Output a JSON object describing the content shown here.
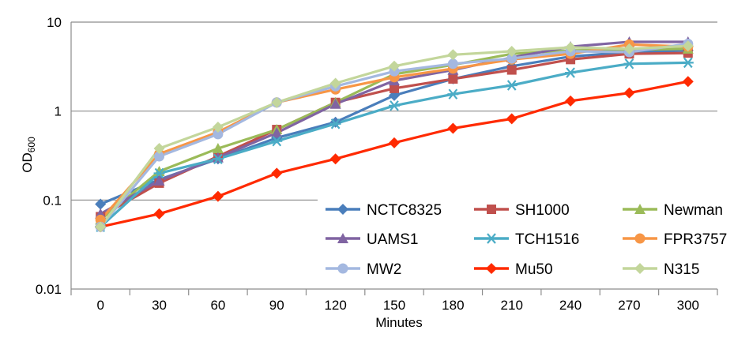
{
  "chart_data": {
    "type": "line",
    "title": "",
    "xlabel": "Minutes",
    "ylabel": "OD",
    "ylabel_subscript": "600",
    "y_scale": "log",
    "ylim": [
      0.01,
      10
    ],
    "y_ticks": [
      "10",
      "1",
      "0.1",
      "0.01"
    ],
    "y_tick_values": [
      10,
      1,
      0.1,
      0.01
    ],
    "categories": [
      "0",
      "30",
      "60",
      "90",
      "120",
      "150",
      "180",
      "210",
      "240",
      "270",
      "300"
    ],
    "grid": "horizontal",
    "legend_position": "bottom-right",
    "series": [
      {
        "name": "NCTC8325",
        "color": "#4a7ebb",
        "marker": "diamond",
        "values": [
          0.09,
          0.17,
          0.29,
          0.5,
          0.75,
          1.5,
          2.3,
          3.2,
          4.1,
          4.6,
          4.8
        ]
      },
      {
        "name": "SH1000",
        "color": "#c0504d",
        "marker": "square",
        "values": [
          0.065,
          0.155,
          0.31,
          0.62,
          1.25,
          1.8,
          2.3,
          2.9,
          3.8,
          4.4,
          4.5
        ]
      },
      {
        "name": "Newman",
        "color": "#9bbb59",
        "marker": "triangle",
        "values": [
          0.06,
          0.21,
          0.38,
          0.62,
          1.25,
          2.6,
          3.3,
          4.4,
          4.8,
          4.9,
          5.0
        ]
      },
      {
        "name": "UAMS1",
        "color": "#8064a2",
        "marker": "triangle",
        "values": [
          0.07,
          0.165,
          0.3,
          0.57,
          1.2,
          2.2,
          2.9,
          4.0,
          5.3,
          6.0,
          6.0
        ]
      },
      {
        "name": "TCH1516",
        "color": "#4bacc6",
        "marker": "asterisk",
        "values": [
          0.05,
          0.2,
          0.29,
          0.46,
          0.72,
          1.15,
          1.55,
          1.95,
          2.7,
          3.4,
          3.5
        ]
      },
      {
        "name": "FPR3757",
        "color": "#f79646",
        "marker": "circle",
        "values": [
          0.06,
          0.33,
          0.58,
          1.25,
          1.75,
          2.4,
          3.0,
          3.8,
          4.4,
          5.6,
          5.3
        ]
      },
      {
        "name": "MW2",
        "color": "#a4b8e0",
        "marker": "circle",
        "values": [
          0.05,
          0.31,
          0.55,
          1.25,
          1.9,
          2.8,
          3.4,
          3.9,
          4.7,
          4.6,
          5.7
        ]
      },
      {
        "name": "Mu50",
        "color": "#ff2a00",
        "marker": "diamond",
        "values": [
          0.05,
          0.07,
          0.11,
          0.2,
          0.29,
          0.44,
          0.64,
          0.82,
          1.3,
          1.6,
          2.15
        ]
      },
      {
        "name": "N315",
        "color": "#c3d69b",
        "marker": "diamond",
        "values": [
          0.05,
          0.38,
          0.66,
          1.25,
          2.05,
          3.2,
          4.3,
          4.7,
          5.2,
          5.0,
          5.4
        ]
      }
    ]
  }
}
